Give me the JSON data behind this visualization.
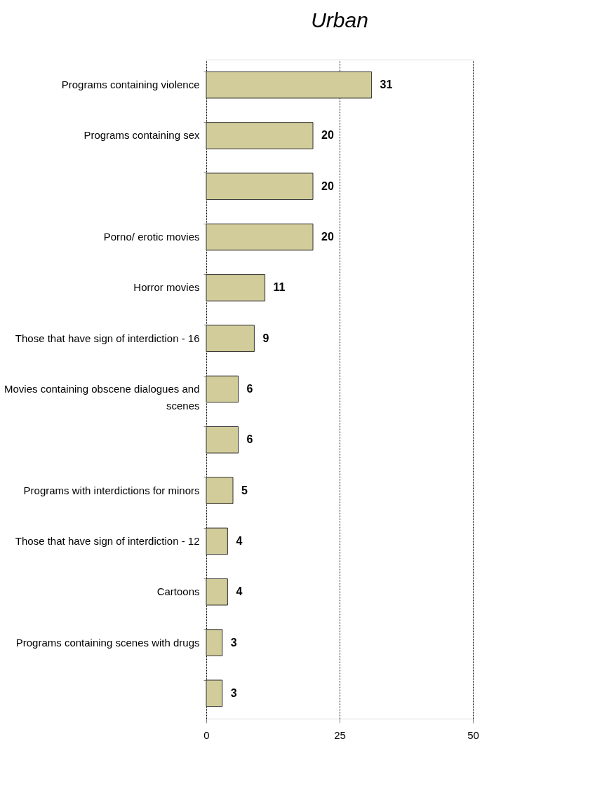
{
  "chart_data": {
    "type": "bar",
    "orientation": "horizontal",
    "title": "Urban",
    "categories": [
      "Programs containing violence",
      "Programs containing sex",
      null,
      "Porno/ erotic movies",
      "Horror movies",
      "Those that have sign of interdiction - 16",
      "Movies containing obscene dialogues and scenes",
      null,
      "Programs with interdictions for minors",
      "Those that have sign of interdiction - 12",
      "Cartoons",
      "Programs containing scenes with drugs",
      null
    ],
    "values": [
      31,
      20,
      20,
      20,
      11,
      9,
      6,
      6,
      5,
      4,
      4,
      3,
      3
    ],
    "color": "#d1cc9a",
    "xlim": [
      0,
      50
    ],
    "xticks": [
      0,
      25,
      50
    ],
    "grid": "x",
    "data_labels": true
  }
}
